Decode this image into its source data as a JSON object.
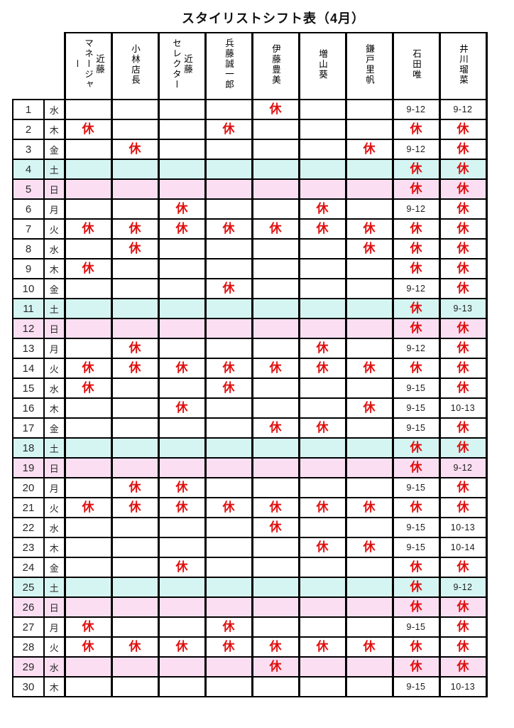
{
  "title": "スタイリストシフト表（4月）",
  "rest_symbol": "休",
  "colors": {
    "saturday_row": "#d5f5f2",
    "sunday_holiday_row": "#fbdef2",
    "rest_red": "#e01010",
    "grid": "#000000"
  },
  "staff": [
    "近藤\nマネージャー",
    "小林店長",
    "近藤\nセレクター",
    "兵藤誠一郎",
    "伊藤豊美",
    "増山葵",
    "鎌戸里帆",
    "石田唯",
    "井川瑠菜"
  ],
  "rows": [
    {
      "date": 1,
      "weekday": "水",
      "type": "normal",
      "shifts": [
        "",
        "",
        "",
        "",
        "休",
        "",
        "",
        "9-12",
        "9-12"
      ]
    },
    {
      "date": 2,
      "weekday": "木",
      "type": "normal",
      "shifts": [
        "休",
        "",
        "",
        "休",
        "",
        "",
        "",
        "休",
        "休"
      ]
    },
    {
      "date": 3,
      "weekday": "金",
      "type": "normal",
      "shifts": [
        "",
        "休",
        "",
        "",
        "",
        "",
        "休",
        "9-12",
        "休"
      ]
    },
    {
      "date": 4,
      "weekday": "土",
      "type": "sat",
      "shifts": [
        "",
        "",
        "",
        "",
        "",
        "",
        "",
        "休",
        "休"
      ]
    },
    {
      "date": 5,
      "weekday": "日",
      "type": "sun",
      "shifts": [
        "",
        "",
        "",
        "",
        "",
        "",
        "",
        "休",
        "休"
      ]
    },
    {
      "date": 6,
      "weekday": "月",
      "type": "normal",
      "shifts": [
        "",
        "",
        "休",
        "",
        "",
        "休",
        "",
        "9-12",
        "休"
      ]
    },
    {
      "date": 7,
      "weekday": "火",
      "type": "normal",
      "shifts": [
        "休",
        "休",
        "休",
        "休",
        "休",
        "休",
        "休",
        "休",
        "休"
      ]
    },
    {
      "date": 8,
      "weekday": "水",
      "type": "normal",
      "shifts": [
        "",
        "休",
        "",
        "",
        "",
        "",
        "休",
        "休",
        "休"
      ]
    },
    {
      "date": 9,
      "weekday": "木",
      "type": "normal",
      "shifts": [
        "休",
        "",
        "",
        "",
        "",
        "",
        "",
        "休",
        "休"
      ]
    },
    {
      "date": 10,
      "weekday": "金",
      "type": "normal",
      "shifts": [
        "",
        "",
        "",
        "休",
        "",
        "",
        "",
        "9-12",
        "休"
      ]
    },
    {
      "date": 11,
      "weekday": "土",
      "type": "sat",
      "shifts": [
        "",
        "",
        "",
        "",
        "",
        "",
        "",
        "休",
        "9-13"
      ]
    },
    {
      "date": 12,
      "weekday": "日",
      "type": "sun",
      "shifts": [
        "",
        "",
        "",
        "",
        "",
        "",
        "",
        "休",
        "休"
      ]
    },
    {
      "date": 13,
      "weekday": "月",
      "type": "normal",
      "shifts": [
        "",
        "休",
        "",
        "",
        "",
        "休",
        "",
        "9-12",
        "休"
      ]
    },
    {
      "date": 14,
      "weekday": "火",
      "type": "normal",
      "shifts": [
        "休",
        "休",
        "休",
        "休",
        "休",
        "休",
        "休",
        "休",
        "休"
      ]
    },
    {
      "date": 15,
      "weekday": "水",
      "type": "normal",
      "shifts": [
        "休",
        "",
        "",
        "休",
        "",
        "",
        "",
        "9-15",
        "休"
      ]
    },
    {
      "date": 16,
      "weekday": "木",
      "type": "normal",
      "shifts": [
        "",
        "",
        "休",
        "",
        "",
        "",
        "休",
        "9-15",
        "10-13"
      ]
    },
    {
      "date": 17,
      "weekday": "金",
      "type": "normal",
      "shifts": [
        "",
        "",
        "",
        "",
        "休",
        "休",
        "",
        "9-15",
        "休"
      ]
    },
    {
      "date": 18,
      "weekday": "土",
      "type": "sat",
      "shifts": [
        "",
        "",
        "",
        "",
        "",
        "",
        "",
        "休",
        "休"
      ]
    },
    {
      "date": 19,
      "weekday": "日",
      "type": "sun",
      "shifts": [
        "",
        "",
        "",
        "",
        "",
        "",
        "",
        "休",
        "9-12"
      ]
    },
    {
      "date": 20,
      "weekday": "月",
      "type": "normal",
      "shifts": [
        "",
        "休",
        "休",
        "",
        "",
        "",
        "",
        "9-15",
        "休"
      ]
    },
    {
      "date": 21,
      "weekday": "火",
      "type": "normal",
      "shifts": [
        "休",
        "休",
        "休",
        "休",
        "休",
        "休",
        "休",
        "休",
        "休"
      ]
    },
    {
      "date": 22,
      "weekday": "水",
      "type": "normal",
      "shifts": [
        "",
        "",
        "",
        "",
        "休",
        "",
        "",
        "9-15",
        "10-13"
      ]
    },
    {
      "date": 23,
      "weekday": "木",
      "type": "normal",
      "shifts": [
        "",
        "",
        "",
        "",
        "",
        "休",
        "休",
        "9-15",
        "10-14"
      ]
    },
    {
      "date": 24,
      "weekday": "金",
      "type": "normal",
      "shifts": [
        "",
        "",
        "休",
        "",
        "",
        "",
        "",
        "休",
        "休"
      ]
    },
    {
      "date": 25,
      "weekday": "土",
      "type": "sat",
      "shifts": [
        "",
        "",
        "",
        "",
        "",
        "",
        "",
        "休",
        "9-12"
      ]
    },
    {
      "date": 26,
      "weekday": "日",
      "type": "sun",
      "shifts": [
        "",
        "",
        "",
        "",
        "",
        "",
        "",
        "休",
        "休"
      ]
    },
    {
      "date": 27,
      "weekday": "月",
      "type": "normal",
      "shifts": [
        "休",
        "",
        "",
        "休",
        "",
        "",
        "",
        "9-15",
        "休"
      ]
    },
    {
      "date": 28,
      "weekday": "火",
      "type": "normal",
      "shifts": [
        "休",
        "休",
        "休",
        "休",
        "休",
        "休",
        "休",
        "休",
        "休"
      ]
    },
    {
      "date": 29,
      "weekday": "水",
      "type": "holiday",
      "shifts": [
        "",
        "",
        "",
        "",
        "休",
        "",
        "",
        "休",
        "休"
      ]
    },
    {
      "date": 30,
      "weekday": "木",
      "type": "normal",
      "shifts": [
        "",
        "",
        "",
        "",
        "",
        "",
        "",
        "9-15",
        "10-13"
      ]
    }
  ]
}
